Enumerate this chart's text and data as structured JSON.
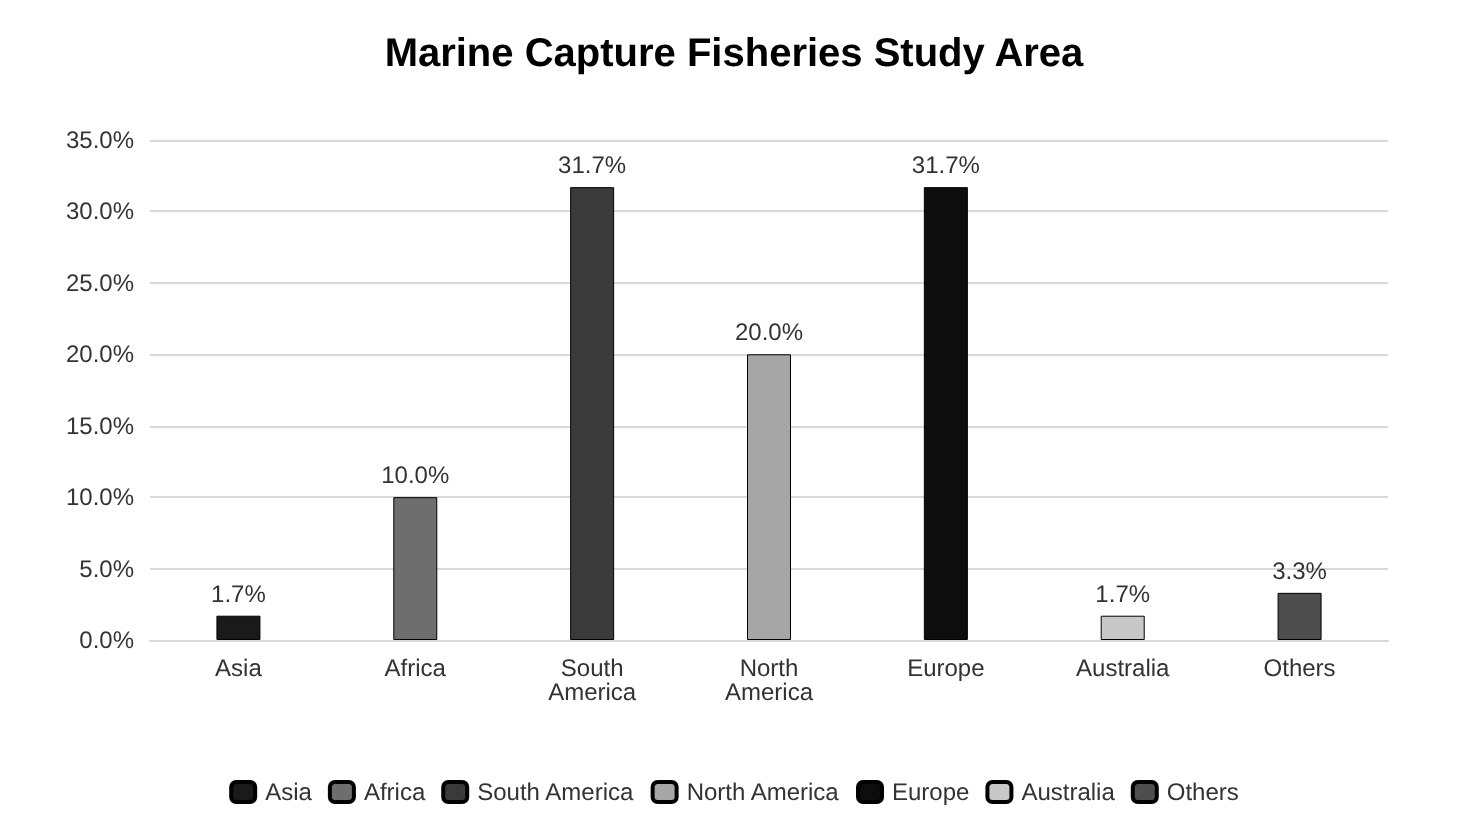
{
  "chart_data": {
    "type": "bar",
    "title": "Marine Capture Fisheries Study Area",
    "stacked": true,
    "categories": [
      "Asia",
      "Africa",
      "South America",
      "North America",
      "Europe",
      "Australia",
      "Others"
    ],
    "series": [
      {
        "name": "Asia",
        "color": "#1a1a1a",
        "values": [
          1.7,
          null,
          null,
          null,
          null,
          null,
          null
        ],
        "value_labels": [
          "1.7%",
          null,
          null,
          null,
          null,
          null,
          null
        ]
      },
      {
        "name": "Africa",
        "color": "#6e6e6e",
        "values": [
          null,
          10.0,
          null,
          null,
          null,
          null,
          null
        ],
        "value_labels": [
          null,
          "10.0%",
          null,
          null,
          null,
          null,
          null
        ]
      },
      {
        "name": "South America",
        "color": "#3a3a3a",
        "values": [
          null,
          null,
          31.7,
          null,
          null,
          null,
          null
        ],
        "value_labels": [
          null,
          null,
          "31.7%",
          null,
          null,
          null,
          null
        ]
      },
      {
        "name": "North America",
        "color": "#a6a6a6",
        "values": [
          null,
          null,
          null,
          20.0,
          null,
          null,
          null
        ],
        "value_labels": [
          null,
          null,
          null,
          "20.0%",
          null,
          null,
          null
        ]
      },
      {
        "name": "Europe",
        "color": "#0d0d0d",
        "values": [
          null,
          null,
          null,
          null,
          31.7,
          null,
          null
        ],
        "value_labels": [
          null,
          null,
          null,
          null,
          "31.7%",
          null,
          null
        ]
      },
      {
        "name": "Australia",
        "color": "#c8c8c8",
        "values": [
          null,
          null,
          null,
          null,
          null,
          1.7,
          null
        ],
        "value_labels": [
          null,
          null,
          null,
          null,
          null,
          "1.7%",
          null
        ]
      },
      {
        "name": "Others",
        "color": "#4d4d4d",
        "values": [
          null,
          null,
          null,
          null,
          null,
          null,
          3.3
        ],
        "value_labels": [
          null,
          null,
          null,
          null,
          null,
          null,
          "3.3%"
        ]
      }
    ],
    "ylim": [
      0,
      35
    ],
    "yticks": [
      {
        "value": 0,
        "label": "0.0%"
      },
      {
        "value": 5,
        "label": "5.0%"
      },
      {
        "value": 10,
        "label": "10.0%"
      },
      {
        "value": 15,
        "label": "15.0%"
      },
      {
        "value": 20,
        "label": "20.0%"
      },
      {
        "value": 25,
        "label": "25.0%"
      },
      {
        "value": 30,
        "label": "30.0%"
      },
      {
        "value": 35,
        "label": "35.0%"
      }
    ],
    "grid": "y",
    "legend": "bottom"
  }
}
